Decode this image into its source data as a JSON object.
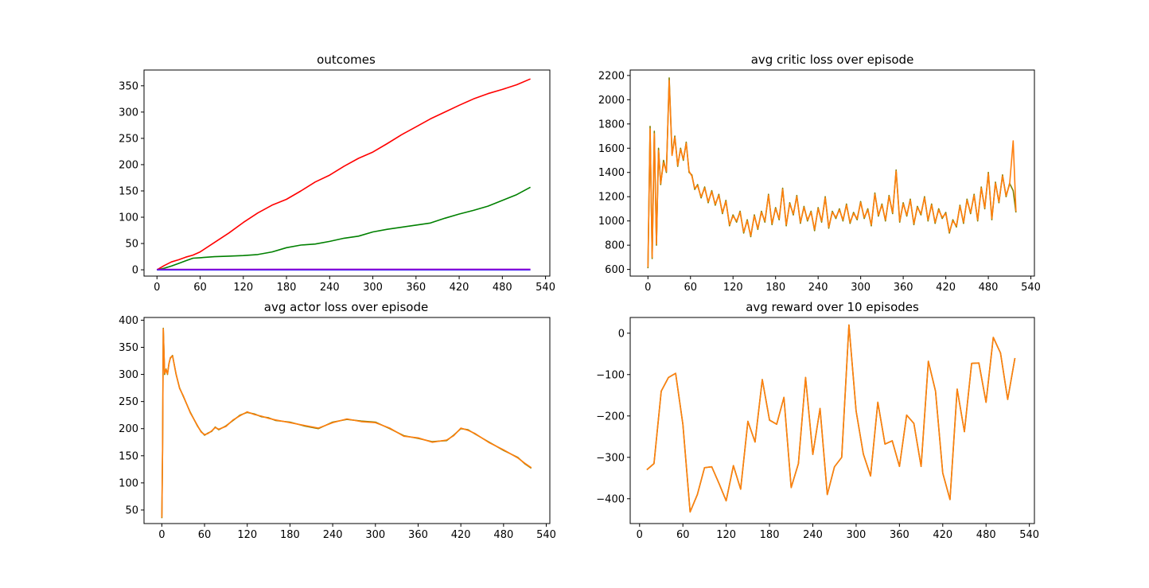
{
  "chart_data": [
    {
      "type": "line",
      "title": "outcomes",
      "xlim": [
        -18,
        546
      ],
      "ylim": [
        -12,
        380
      ],
      "xticks": [
        0,
        60,
        120,
        180,
        240,
        300,
        360,
        420,
        480,
        540
      ],
      "yticks": [
        0,
        50,
        100,
        150,
        200,
        250,
        300,
        350
      ],
      "series": [
        {
          "color": "#ff0000",
          "x": [
            0,
            10,
            20,
            30,
            40,
            50,
            60,
            80,
            100,
            120,
            140,
            160,
            180,
            200,
            220,
            240,
            260,
            280,
            300,
            320,
            340,
            360,
            380,
            400,
            420,
            440,
            460,
            480,
            500,
            519
          ],
          "y": [
            0,
            8,
            15,
            19,
            24,
            28,
            34,
            52,
            70,
            90,
            108,
            123,
            134,
            150,
            167,
            180,
            197,
            212,
            224,
            240,
            257,
            272,
            287,
            300,
            313,
            325,
            335,
            343,
            352,
            363
          ]
        },
        {
          "color": "#008000",
          "x": [
            0,
            10,
            20,
            30,
            40,
            50,
            60,
            80,
            100,
            120,
            140,
            160,
            180,
            200,
            220,
            240,
            260,
            280,
            300,
            320,
            340,
            360,
            380,
            400,
            420,
            440,
            460,
            480,
            500,
            519
          ],
          "y": [
            0,
            3,
            7,
            12,
            17,
            22,
            23,
            25,
            26,
            27,
            29,
            34,
            42,
            47,
            49,
            54,
            60,
            64,
            72,
            77,
            81,
            85,
            89,
            98,
            106,
            113,
            121,
            132,
            143,
            157
          ]
        },
        {
          "color": "#0000ff",
          "x": [
            0,
            519
          ],
          "y": [
            0,
            0
          ]
        },
        {
          "color": "#9400d3",
          "x": [
            0,
            519
          ],
          "y": [
            0.8,
            1
          ]
        }
      ]
    },
    {
      "type": "line",
      "title": "avg critic loss over episode",
      "xlim": [
        -25,
        545
      ],
      "ylim": [
        545,
        2245
      ],
      "xticks": [
        0,
        60,
        120,
        180,
        240,
        300,
        360,
        420,
        480,
        540
      ],
      "yticks": [
        600,
        800,
        1000,
        1200,
        1400,
        1600,
        1800,
        2000,
        2200
      ],
      "series": [
        {
          "color": "#808000",
          "x": [
            0,
            3,
            6,
            9,
            12,
            15,
            18,
            22,
            26,
            30,
            34,
            38,
            42,
            46,
            50,
            54,
            58,
            62,
            66,
            70,
            75,
            80,
            85,
            90,
            95,
            100,
            105,
            110,
            115,
            120,
            125,
            130,
            135,
            140,
            145,
            150,
            155,
            160,
            165,
            170,
            175,
            180,
            185,
            190,
            195,
            200,
            205,
            210,
            215,
            220,
            225,
            230,
            235,
            240,
            245,
            250,
            255,
            260,
            265,
            270,
            275,
            280,
            285,
            290,
            295,
            300,
            305,
            310,
            315,
            320,
            325,
            330,
            335,
            340,
            345,
            350,
            355,
            360,
            365,
            370,
            375,
            380,
            385,
            390,
            395,
            400,
            405,
            410,
            415,
            420,
            425,
            430,
            435,
            440,
            445,
            450,
            455,
            460,
            465,
            470,
            475,
            480,
            485,
            490,
            495,
            500,
            505,
            510,
            515,
            519
          ],
          "y": [
            610,
            1780,
            690,
            1740,
            800,
            1600,
            1300,
            1500,
            1400,
            2180,
            1550,
            1700,
            1450,
            1600,
            1500,
            1650,
            1400,
            1380,
            1260,
            1300,
            1190,
            1280,
            1150,
            1250,
            1130,
            1220,
            1060,
            1170,
            960,
            1050,
            990,
            1080,
            900,
            1010,
            870,
            1050,
            930,
            1080,
            990,
            1220,
            970,
            1110,
            1010,
            1270,
            960,
            1150,
            1050,
            1210,
            980,
            1120,
            1000,
            1080,
            920,
            1110,
            990,
            1200,
            940,
            1080,
            1020,
            1100,
            1000,
            1140,
            980,
            1070,
            1010,
            1160,
            1020,
            1100,
            960,
            1230,
            1040,
            1140,
            1000,
            1210,
            1060,
            1420,
            990,
            1150,
            1040,
            1180,
            970,
            1120,
            1050,
            1200,
            1000,
            1140,
            980,
            1100,
            1020,
            1070,
            900,
            1010,
            950,
            1130,
            980,
            1180,
            1060,
            1220,
            1000,
            1280,
            1100,
            1400,
            1010,
            1320,
            1150,
            1380,
            1200,
            1310,
            1250,
            1070
          ]
        },
        {
          "color": "#ff7f0e",
          "x": [
            0,
            3,
            6,
            9,
            12,
            15,
            18,
            22,
            26,
            30,
            34,
            38,
            42,
            46,
            50,
            54,
            58,
            62,
            66,
            70,
            75,
            80,
            85,
            90,
            95,
            100,
            105,
            110,
            115,
            120,
            125,
            130,
            135,
            140,
            145,
            150,
            155,
            160,
            165,
            170,
            175,
            180,
            185,
            190,
            195,
            200,
            205,
            210,
            215,
            220,
            225,
            230,
            235,
            240,
            245,
            250,
            255,
            260,
            265,
            270,
            275,
            280,
            285,
            290,
            295,
            300,
            305,
            310,
            315,
            320,
            325,
            330,
            335,
            340,
            345,
            350,
            355,
            360,
            365,
            370,
            375,
            380,
            385,
            390,
            395,
            400,
            405,
            410,
            415,
            420,
            425,
            430,
            435,
            440,
            445,
            450,
            455,
            460,
            465,
            470,
            475,
            480,
            485,
            490,
            495,
            500,
            505,
            510,
            515,
            519
          ],
          "y": [
            620,
            1760,
            700,
            1720,
            810,
            1580,
            1310,
            1480,
            1410,
            2160,
            1540,
            1690,
            1460,
            1590,
            1510,
            1640,
            1410,
            1370,
            1270,
            1290,
            1200,
            1270,
            1160,
            1240,
            1140,
            1210,
            1070,
            1160,
            970,
            1040,
            1000,
            1070,
            910,
            1000,
            880,
            1040,
            940,
            1070,
            1000,
            1210,
            980,
            1100,
            1020,
            1260,
            970,
            1140,
            1060,
            1200,
            990,
            1110,
            1010,
            1070,
            930,
            1100,
            1000,
            1190,
            950,
            1070,
            1030,
            1090,
            1010,
            1130,
            990,
            1060,
            1020,
            1150,
            1030,
            1090,
            970,
            1220,
            1050,
            1130,
            1010,
            1200,
            1070,
            1410,
            1000,
            1140,
            1050,
            1170,
            980,
            1110,
            1060,
            1190,
            1010,
            1130,
            990,
            1090,
            1030,
            1060,
            910,
            1000,
            960,
            1120,
            990,
            1170,
            1070,
            1210,
            1010,
            1270,
            1110,
            1390,
            1020,
            1310,
            1160,
            1370,
            1210,
            1300,
            1660,
            1080
          ]
        }
      ]
    },
    {
      "type": "line",
      "title": "avg actor loss over episode",
      "xlim": [
        -25,
        545
      ],
      "ylim": [
        25,
        405
      ],
      "xticks": [
        0,
        60,
        120,
        180,
        240,
        300,
        360,
        420,
        480,
        540
      ],
      "yticks": [
        50,
        100,
        150,
        200,
        250,
        300,
        350,
        400
      ],
      "series": [
        {
          "color": "#808000",
          "x": [
            0,
            1,
            2,
            3,
            4,
            5,
            6,
            8,
            10,
            12,
            15,
            20,
            25,
            30,
            40,
            50,
            55,
            60,
            65,
            70,
            75,
            80,
            90,
            100,
            110,
            120,
            130,
            140,
            150,
            160,
            180,
            200,
            220,
            240,
            260,
            280,
            300,
            320,
            340,
            360,
            380,
            400,
            410,
            420,
            430,
            440,
            460,
            480,
            500,
            510,
            519
          ],
          "y": [
            35,
            160,
            385,
            340,
            300,
            305,
            310,
            300,
            320,
            330,
            335,
            300,
            275,
            260,
            230,
            205,
            195,
            188,
            192,
            195,
            203,
            198,
            205,
            215,
            225,
            230,
            227,
            222,
            220,
            215,
            212,
            205,
            200,
            212,
            217,
            214,
            212,
            200,
            187,
            182,
            176,
            178,
            188,
            200,
            198,
            190,
            175,
            160,
            147,
            135,
            127
          ]
        },
        {
          "color": "#ff7f0e",
          "x": [
            0,
            1,
            2,
            3,
            4,
            5,
            6,
            8,
            10,
            12,
            15,
            20,
            25,
            30,
            40,
            50,
            55,
            60,
            65,
            70,
            75,
            80,
            90,
            100,
            110,
            120,
            130,
            140,
            150,
            160,
            180,
            200,
            220,
            240,
            260,
            280,
            300,
            320,
            340,
            360,
            380,
            400,
            410,
            420,
            430,
            440,
            460,
            480,
            500,
            510,
            519
          ],
          "y": [
            36,
            162,
            384,
            338,
            302,
            304,
            309,
            301,
            319,
            331,
            334,
            301,
            274,
            261,
            229,
            206,
            194,
            189,
            191,
            196,
            202,
            199,
            204,
            216,
            224,
            231,
            226,
            223,
            219,
            216,
            211,
            206,
            201,
            211,
            218,
            213,
            211,
            201,
            186,
            183,
            175,
            179,
            187,
            201,
            197,
            191,
            174,
            161,
            146,
            136,
            128
          ]
        }
      ]
    },
    {
      "type": "line",
      "title": "avg reward over 10 episodes",
      "xlim": [
        -13,
        547
      ],
      "ylim": [
        -460,
        38
      ],
      "xticks": [
        0,
        60,
        120,
        180,
        240,
        300,
        360,
        420,
        480,
        540
      ],
      "yticks": [
        -400,
        -300,
        -200,
        -100,
        0
      ],
      "series": [
        {
          "color": "#808000",
          "x": [
            10,
            20,
            30,
            40,
            50,
            60,
            70,
            80,
            90,
            100,
            110,
            120,
            130,
            140,
            150,
            160,
            170,
            180,
            190,
            200,
            210,
            220,
            230,
            240,
            250,
            260,
            270,
            280,
            290,
            300,
            310,
            320,
            330,
            340,
            350,
            360,
            370,
            380,
            390,
            400,
            410,
            420,
            430,
            440,
            450,
            460,
            470,
            480,
            490,
            500,
            510,
            520
          ],
          "y": [
            -330,
            -315,
            -140,
            -107,
            -97,
            -220,
            -432,
            -390,
            -325,
            -323,
            -363,
            -405,
            -320,
            -377,
            -213,
            -263,
            -112,
            -210,
            -220,
            -155,
            -373,
            -315,
            -107,
            -293,
            -182,
            -390,
            -323,
            -300,
            20,
            -188,
            -292,
            -345,
            -167,
            -268,
            -260,
            -322,
            -198,
            -218,
            -322,
            -68,
            -140,
            -338,
            -402,
            -135,
            -238,
            -73,
            -72,
            -167,
            -10,
            -48,
            -160,
            -60
          ]
        },
        {
          "color": "#ff7f0e",
          "x": [
            10,
            20,
            30,
            40,
            50,
            60,
            70,
            80,
            90,
            100,
            110,
            120,
            130,
            140,
            150,
            160,
            170,
            180,
            190,
            200,
            210,
            220,
            230,
            240,
            250,
            260,
            270,
            280,
            290,
            300,
            310,
            320,
            330,
            340,
            350,
            360,
            370,
            380,
            390,
            400,
            410,
            420,
            430,
            440,
            450,
            460,
            470,
            480,
            490,
            500,
            510,
            520
          ],
          "y": [
            -330,
            -315,
            -140,
            -107,
            -97,
            -220,
            -432,
            -390,
            -325,
            -323,
            -363,
            -405,
            -320,
            -377,
            -213,
            -263,
            -112,
            -210,
            -220,
            -155,
            -373,
            -315,
            -107,
            -293,
            -182,
            -390,
            -323,
            -300,
            20,
            -188,
            -292,
            -345,
            -167,
            -268,
            -260,
            -322,
            -198,
            -218,
            -322,
            -68,
            -140,
            -338,
            -402,
            -135,
            -238,
            -73,
            -72,
            -167,
            -10,
            -48,
            -160,
            -60
          ]
        }
      ]
    }
  ]
}
